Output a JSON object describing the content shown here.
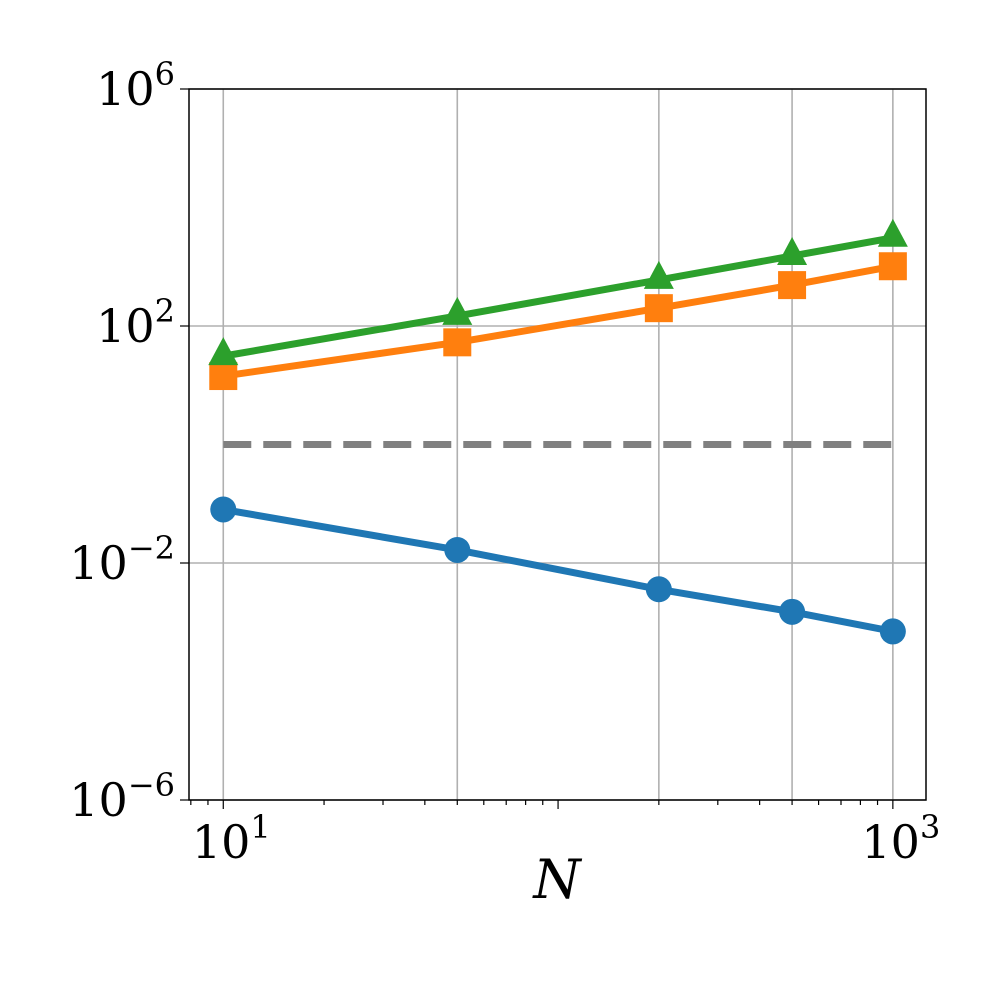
{
  "chart_data": {
    "type": "line",
    "title": "",
    "xlabel": "N",
    "ylabel": "",
    "xscale": "log",
    "yscale": "log",
    "xlim": [
      7.9,
      1256
    ],
    "ylim": [
      1e-06,
      1000000.0
    ],
    "grid": true,
    "legend": null,
    "x_ticks": [
      {
        "value": 10,
        "base": "10",
        "exp": "1"
      },
      {
        "value": 1000,
        "base": "10",
        "exp": "3"
      }
    ],
    "y_ticks": [
      {
        "value": 1000000.0,
        "base": "10",
        "exp": "6"
      },
      {
        "value": 100.0,
        "base": "10",
        "exp": "2"
      },
      {
        "value": 0.01,
        "base": "10",
        "exp": "−2"
      },
      {
        "value": 1e-06,
        "base": "10",
        "exp": "−6"
      }
    ],
    "x": [
      10,
      50,
      200,
      500,
      1000
    ],
    "series": [
      {
        "name": "series-blue-circle",
        "color": "#1f77b4",
        "marker": "circle",
        "values": [
          0.08,
          0.0166,
          0.0036,
          0.0015,
          0.0007
        ]
      },
      {
        "name": "series-orange-square",
        "color": "#ff7f0e",
        "marker": "square",
        "values": [
          14.3,
          53,
          200,
          490,
          1020
        ]
      },
      {
        "name": "series-green-triangle",
        "color": "#2ca02c",
        "marker": "triangle",
        "values": [
          31,
          148,
          600,
          1520,
          3080
        ]
      },
      {
        "name": "reference-dashed",
        "color": "#808080",
        "marker": "none",
        "linestyle": "dashed",
        "values": [
          1,
          1,
          1,
          1,
          1
        ]
      }
    ]
  }
}
